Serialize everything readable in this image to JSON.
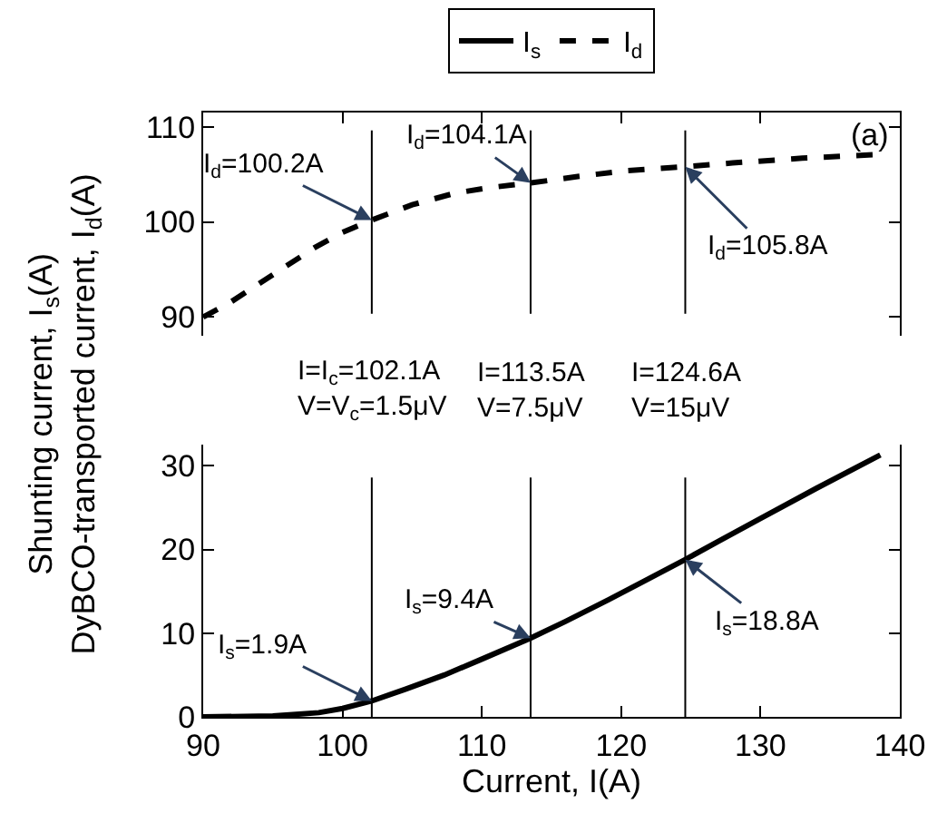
{
  "chart_data": [
    {
      "type": "line",
      "x": [
        90,
        92,
        94,
        96,
        98,
        100,
        102.1,
        105,
        108,
        110.5,
        113.5,
        117,
        120.5,
        124.6,
        128,
        133,
        138.6
      ],
      "series": [
        {
          "name": "I$_{d}$",
          "color": "#000000",
          "line_style": "dashed",
          "values": [
            90,
            91.6,
            93.5,
            95.4,
            97.3,
            98.9,
            100.2,
            101.8,
            103.0,
            103.6,
            104.1,
            104.8,
            105.4,
            105.8,
            106.2,
            106.7,
            107.1
          ]
        }
      ],
      "xlim": [
        90,
        140
      ],
      "xticks": [
        90,
        100,
        110,
        120,
        130,
        140
      ],
      "ylim": [
        88,
        111.5
      ],
      "yticks": [
        90,
        100,
        110
      ],
      "tick_labels": "y",
      "ref_lines": [
        {
          "axis": "x",
          "value": 102.1,
          "label": "I=I$_{c}$=102.1A\nV=V$_{c}$=1.5μV",
          "color": "#000000"
        },
        {
          "axis": "x",
          "value": 113.5,
          "label": "I=113.5A\nV=7.5μV",
          "color": "#000000"
        },
        {
          "axis": "x",
          "value": 124.6,
          "label": "I=124.6A\nV=15μV",
          "color": "#000000"
        }
      ],
      "annotations": [
        "(a)",
        {
          "text": "I$_{d}$=100.2A",
          "x": 102.1,
          "y": 100.2
        },
        {
          "text": "I$_{d}$=104.1A",
          "x": 113.5,
          "y": 104.1
        },
        {
          "text": "I$_{d}$=105.8A",
          "x": 124.6,
          "y": 105.8
        }
      ],
      "legend": "top",
      "marker": "none"
    },
    {
      "type": "line",
      "xlabel": "Current, I(A)",
      "ylabel": "Shunting current, I$_{s}$(A)\nDyBCO-transported current, I$_{d}$(A)",
      "x": [
        90,
        95,
        98.3,
        100,
        102.1,
        104.5,
        107.3,
        110,
        113.5,
        116,
        119.1,
        121.5,
        124.6,
        127,
        130,
        134,
        138.6
      ],
      "series": [
        {
          "name": "I$_{s}$",
          "color": "#000000",
          "line_style": "solid",
          "values": [
            0,
            0.1,
            0.5,
            1.0,
            1.9,
            3.3,
            5.0,
            6.9,
            9.4,
            11.4,
            14.0,
            16.1,
            18.8,
            21.0,
            23.7,
            27.3,
            31.3
          ]
        }
      ],
      "xlim": [
        90,
        140
      ],
      "xticks": [
        90,
        100,
        110,
        120,
        130,
        140
      ],
      "ylim": [
        0,
        32.5
      ],
      "yticks": [
        0,
        10,
        20,
        30
      ],
      "ref_lines": [
        {
          "axis": "x",
          "value": 102.1,
          "color": "#000000"
        },
        {
          "axis": "x",
          "value": 113.5,
          "color": "#000000"
        },
        {
          "axis": "x",
          "value": 124.6,
          "color": "#000000"
        }
      ],
      "annotations": [
        {
          "text": "I$_{s}$=1.9A",
          "x": 102.1,
          "y": 1.9
        },
        {
          "text": "I$_{s}$=9.4A",
          "x": 113.5,
          "y": 9.4
        },
        {
          "text": "I$_{s}$=18.8A",
          "x": 124.6,
          "y": 18.8
        }
      ],
      "marker": "none"
    }
  ]
}
